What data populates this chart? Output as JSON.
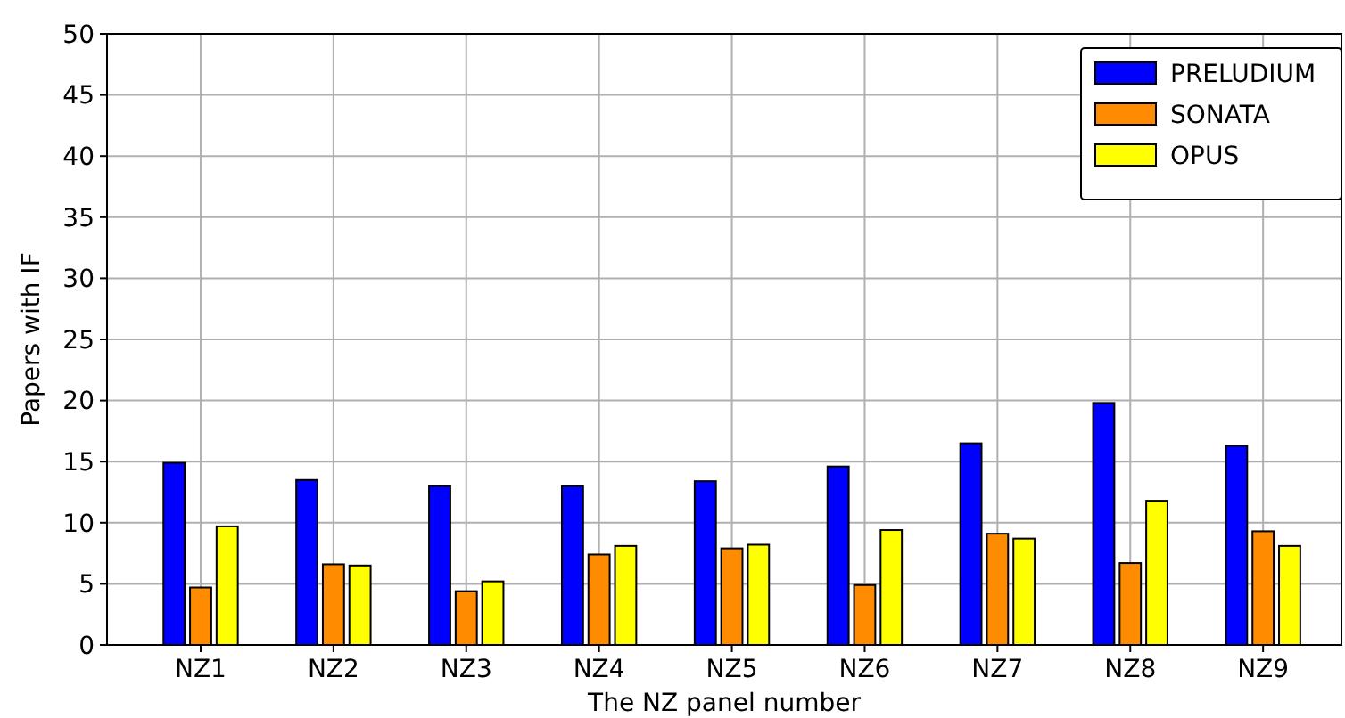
{
  "chart_data": {
    "type": "bar",
    "xlabel": "The NZ panel number",
    "ylabel": "Papers with IF",
    "categories": [
      "NZ1",
      "NZ2",
      "NZ3",
      "NZ4",
      "NZ5",
      "NZ6",
      "NZ7",
      "NZ8",
      "NZ9"
    ],
    "series": [
      {
        "name": "PRELUDIUM",
        "color": "#0000ff",
        "values": [
          14.9,
          13.5,
          13.0,
          13.0,
          13.4,
          14.6,
          16.5,
          19.8,
          16.3
        ]
      },
      {
        "name": "SONATA",
        "color": "#ff8c00",
        "values": [
          4.7,
          6.6,
          4.4,
          7.4,
          7.9,
          4.9,
          9.1,
          6.7,
          9.3
        ]
      },
      {
        "name": "OPUS",
        "color": "#ffff00",
        "values": [
          9.7,
          6.5,
          5.2,
          8.1,
          8.2,
          9.4,
          8.7,
          11.8,
          8.1
        ]
      }
    ],
    "ylim": [
      0,
      50
    ],
    "yticks": [
      0,
      5,
      10,
      15,
      20,
      25,
      30,
      35,
      40,
      45,
      50
    ],
    "grid": true,
    "legend": "top right"
  }
}
